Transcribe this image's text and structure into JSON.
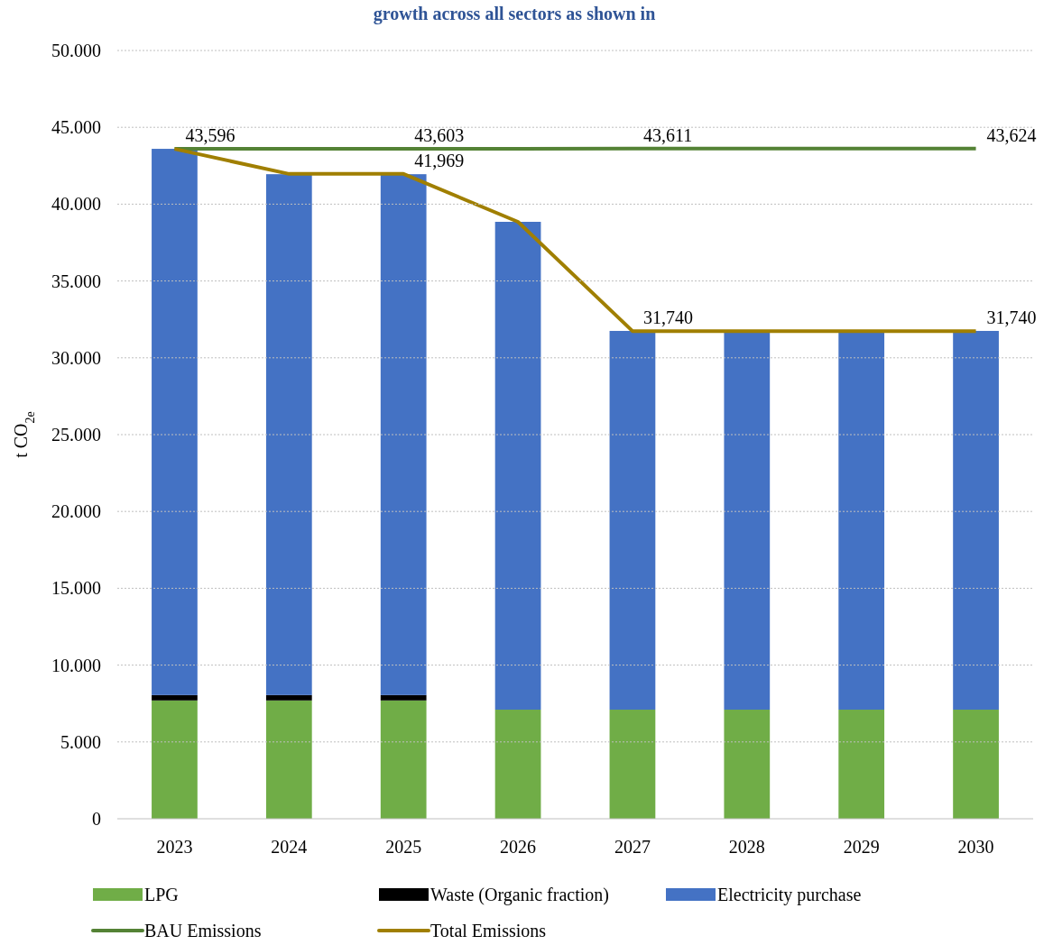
{
  "chart_data": {
    "type": "bar",
    "title": "growth across all sectors as shown in",
    "ylabel": "t CO$_{2e}$",
    "stacked": true,
    "categories": [
      "2023",
      "2024",
      "2025",
      "2026",
      "2027",
      "2028",
      "2029",
      "2030"
    ],
    "series": [
      {
        "name": "LPG",
        "color": "#70ad47",
        "values": [
          7700,
          7700,
          7700,
          7100,
          7100,
          7100,
          7100,
          7100
        ]
      },
      {
        "name": "Waste (Organic fraction)",
        "color": "#000000",
        "values": [
          350,
          350,
          350,
          0,
          0,
          0,
          0,
          0
        ]
      },
      {
        "name": "Electricity purchase",
        "color": "#4472c4",
        "values": [
          35550,
          33900,
          33900,
          31750,
          24650,
          24650,
          24650,
          24650
        ]
      },
      {
        "name": "BAU Emissions",
        "type": "line",
        "color": "#548235",
        "values": [
          43596,
          43600,
          43603,
          43607,
          43611,
          43615,
          43620,
          43624
        ]
      },
      {
        "name": "Total Emissions",
        "type": "line",
        "color": "#a07f00",
        "values": [
          43596,
          41969,
          41969,
          38850,
          31740,
          31740,
          31740,
          31740
        ]
      }
    ],
    "annotations": [
      {
        "text": "43,596",
        "x": "2023",
        "y": 43596
      },
      {
        "text": "43,603",
        "x": "2025",
        "y": 43603
      },
      {
        "text": "41,969",
        "x": "2025",
        "y": 41969
      },
      {
        "text": "43,611",
        "x": "2027",
        "y": 43611
      },
      {
        "text": "31,740",
        "x": "2027",
        "y": 31740
      },
      {
        "text": "43,624",
        "x": "2030",
        "y": 43624
      },
      {
        "text": "31,740",
        "x": "2030",
        "y": 31740
      }
    ],
    "ylim": [
      0,
      50000
    ],
    "yticks": [
      0,
      {
        "value": 5000,
        "label": "5.000"
      },
      {
        "value": 10000,
        "label": "10.000"
      },
      {
        "value": 15000,
        "label": "15.000"
      },
      {
        "value": 20000,
        "label": "20.000"
      },
      {
        "value": 25000,
        "label": "25.000"
      },
      {
        "value": 30000,
        "label": "30.000"
      },
      {
        "value": 35000,
        "label": "35.000"
      },
      {
        "value": 40000,
        "label": "40.000"
      },
      {
        "value": 45000,
        "label": "45.000"
      },
      {
        "value": 50000,
        "label": "50.000"
      }
    ],
    "grid": "y",
    "legend": "bottom",
    "marker": "none",
    "line_style": "solid"
  }
}
